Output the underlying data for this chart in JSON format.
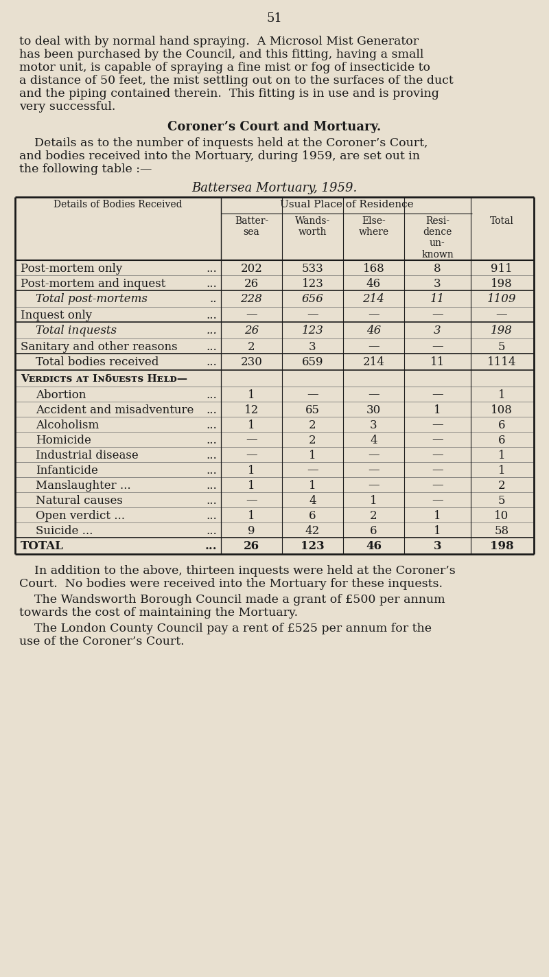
{
  "page_number": "51",
  "bg_color": "#e8e0d0",
  "text_color": "#1a1a1a",
  "intro_lines": [
    "to deal with by normal hand spraying.  A Microsol Mist Generator",
    "has been purchased by the Council, and this fitting, having a small",
    "motor unit, is capable of spraying a fine mist or fog of insecticide to",
    "a distance of 50 feet, the mist settling out on to the surfaces of the duct",
    "and the piping contained therein.  This fitting is in use and is proving",
    "very successful."
  ],
  "section_heading": "Coroner’s Court and Mortuary.",
  "section_lines": [
    "    Details as to the number of inquests held at the Coroner’s Court,",
    "and bodies received into the Mortuary, during 1959, are set out in",
    "the following table :—"
  ],
  "table_title": "Battersea Mortuary, 1959.",
  "col_header_main": "Usual Place of Residence",
  "col_headers": [
    "Batter-\nsea",
    "Wands-\nworth",
    "Else-\nwhere",
    "Resi-\ndence\nun-\nknown",
    "Total"
  ],
  "row_label_header": "Details of Bodies Received",
  "rows": [
    {
      "label": "Post-mortem only",
      "dots": "...",
      "vals": [
        "202",
        "533",
        "168",
        "8",
        "911"
      ],
      "italic": false,
      "bold": false,
      "indent": 0,
      "sep_above": false
    },
    {
      "label": "Post-mortem and inquest",
      "dots": "...",
      "vals": [
        "26",
        "123",
        "46",
        "3",
        "198"
      ],
      "italic": false,
      "bold": false,
      "indent": 0,
      "sep_above": false
    },
    {
      "label": "Total post-mortems",
      "dots": "..",
      "vals": [
        "228",
        "656",
        "214",
        "11",
        "1109"
      ],
      "italic": true,
      "bold": false,
      "indent": 1,
      "sep_above": true
    },
    {
      "label": "Inquest only",
      "dots": "...",
      "vals": [
        "—",
        "—",
        "—",
        "—",
        "—"
      ],
      "italic": false,
      "bold": false,
      "indent": 0,
      "sep_above": false
    },
    {
      "label": "Total inquests",
      "dots": "...",
      "vals": [
        "26",
        "123",
        "46",
        "3",
        "198"
      ],
      "italic": true,
      "bold": false,
      "indent": 1,
      "sep_above": true
    },
    {
      "label": "Sanitary and other reasons",
      "dots": "...",
      "vals": [
        "2",
        "3",
        "—",
        "—",
        "5"
      ],
      "italic": false,
      "bold": false,
      "indent": 0,
      "sep_above": false
    },
    {
      "label": "Total bodies received",
      "dots": "...",
      "vals": [
        "230",
        "659",
        "214",
        "11",
        "1114"
      ],
      "italic": false,
      "bold": false,
      "indent": 1,
      "sep_above": true
    },
    {
      "label": "Vᴇʀᴅɪᴄᴛѕ ᴀᴛ Iɴẟᴜᴇѕᴛѕ Hᴇʟᴅ—",
      "dots": "",
      "vals": [
        "",
        "",
        "",
        "",
        ""
      ],
      "italic": false,
      "bold": true,
      "smallcaps": true,
      "indent": 0,
      "sep_above": true
    },
    {
      "label": "Abortion",
      "dots": "...",
      "vals": [
        "1",
        "—",
        "—",
        "—",
        "1"
      ],
      "italic": false,
      "bold": false,
      "indent": 1,
      "sep_above": false
    },
    {
      "label": "Accident and misadventure",
      "dots": "...",
      "vals": [
        "12",
        "65",
        "30",
        "1",
        "108"
      ],
      "italic": false,
      "bold": false,
      "indent": 1,
      "sep_above": false
    },
    {
      "label": "Alcoholism",
      "dots": "...",
      "vals": [
        "1",
        "2",
        "3",
        "—",
        "6"
      ],
      "italic": false,
      "bold": false,
      "indent": 1,
      "sep_above": false
    },
    {
      "label": "Homicide",
      "dots": "...",
      "vals": [
        "—",
        "2",
        "4",
        "—",
        "6"
      ],
      "italic": false,
      "bold": false,
      "indent": 1,
      "sep_above": false
    },
    {
      "label": "Industrial disease",
      "dots": "...",
      "vals": [
        "—",
        "1",
        "—",
        "—",
        "1"
      ],
      "italic": false,
      "bold": false,
      "indent": 1,
      "sep_above": false
    },
    {
      "label": "Infanticide",
      "dots": "...",
      "vals": [
        "1",
        "—",
        "—",
        "—",
        "1"
      ],
      "italic": false,
      "bold": false,
      "indent": 1,
      "sep_above": false
    },
    {
      "label": "Manslaughter ...",
      "dots": "...",
      "vals": [
        "1",
        "1",
        "—",
        "—",
        "2"
      ],
      "italic": false,
      "bold": false,
      "indent": 1,
      "sep_above": false
    },
    {
      "label": "Natural causes",
      "dots": "...",
      "vals": [
        "—",
        "4",
        "1",
        "—",
        "5"
      ],
      "italic": false,
      "bold": false,
      "indent": 1,
      "sep_above": false
    },
    {
      "label": "Open verdict ...",
      "dots": "...",
      "vals": [
        "1",
        "6",
        "2",
        "1",
        "10"
      ],
      "italic": false,
      "bold": false,
      "indent": 1,
      "sep_above": false
    },
    {
      "label": "Suicide ...",
      "dots": "...",
      "vals": [
        "9",
        "42",
        "6",
        "1",
        "58"
      ],
      "italic": false,
      "bold": false,
      "indent": 1,
      "sep_above": false
    },
    {
      "label": "TOTAL",
      "dots": "...",
      "vals": [
        "26",
        "123",
        "46",
        "3",
        "198"
      ],
      "italic": false,
      "bold": true,
      "indent": 0,
      "sep_above": true
    }
  ],
  "footer_blocks": [
    [
      "    In addition to the above, thirteen inquests were held at the Coroner’s",
      "Court.  No bodies were received into the Mortuary for these inquests."
    ],
    [
      "    The Wandsworth Borough Council made a grant of £500 per annum",
      "towards the cost of maintaining the Mortuary."
    ],
    [
      "    The London County Council pay a rent of £525 per annum for the",
      "use of the Coroner’s Court."
    ]
  ]
}
